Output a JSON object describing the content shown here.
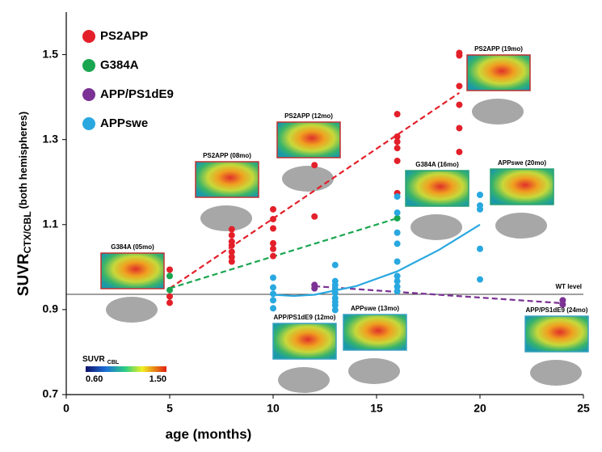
{
  "chart_data": {
    "type": "scatter",
    "x_label": "age (months)",
    "y_label": {
      "main": "SUVR",
      "subscript": "CTX/CBL",
      "suffix": "(both hemispheres)"
    },
    "xlim": [
      0,
      25
    ],
    "xticks": [
      0,
      5,
      10,
      15,
      20,
      25
    ],
    "ylim": [
      0.7,
      1.6
    ],
    "yticks": [
      0.7,
      0.9,
      1.1,
      1.3,
      1.5
    ],
    "series": [
      {
        "name": "PS2APP",
        "color": "#e3202a",
        "x": [
          5,
          5,
          5,
          8,
          8,
          8,
          8,
          8,
          8,
          8,
          10,
          10,
          10,
          10,
          10,
          10,
          12,
          12,
          16,
          16,
          16,
          16,
          16,
          16,
          19,
          19,
          19,
          19,
          19,
          19
        ],
        "values": [
          0.994,
          0.931,
          0.916,
          1.089,
          1.075,
          1.06,
          1.051,
          1.036,
          1.024,
          1.013,
          1.136,
          1.113,
          1.091,
          1.056,
          1.043,
          1.026,
          1.24,
          1.119,
          1.36,
          1.307,
          1.295,
          1.28,
          1.25,
          1.174,
          1.504,
          1.498,
          1.426,
          1.382,
          1.327,
          1.271
        ]
      },
      {
        "name": "G384A",
        "color": "#1aa650",
        "x": [
          5,
          5,
          16
        ],
        "values": [
          0.979,
          0.946,
          1.115
        ]
      },
      {
        "name": "APP/PS1dE9",
        "color": "#7b3294",
        "x": [
          12,
          12,
          24,
          24
        ],
        "values": [
          0.958,
          0.95,
          0.922,
          0.912
        ]
      },
      {
        "name": "APPswe",
        "color": "#29a8e0",
        "x": [
          10,
          10,
          10,
          10,
          10,
          13,
          13,
          13,
          13,
          13,
          13,
          13,
          13,
          13,
          16,
          16,
          16,
          16,
          16,
          16,
          16,
          16,
          16,
          20,
          20,
          20,
          20,
          20
        ],
        "values": [
          0.975,
          0.952,
          0.937,
          0.922,
          0.903,
          1.005,
          0.967,
          0.958,
          0.948,
          0.939,
          0.927,
          0.918,
          0.91,
          0.899,
          1.166,
          1.128,
          1.081,
          1.055,
          1.013,
          0.979,
          0.967,
          0.954,
          0.943,
          1.17,
          1.145,
          1.136,
          1.043,
          0.971
        ]
      }
    ],
    "trendlines": [
      {
        "color": "#e3202a",
        "dashed": true,
        "x": [
          5,
          19
        ],
        "values": [
          0.95,
          1.41
        ]
      },
      {
        "color": "#1aa650",
        "dashed": true,
        "x": [
          5,
          16
        ],
        "values": [
          0.95,
          1.115
        ]
      },
      {
        "color": "#7b3294",
        "dashed": true,
        "x": [
          12,
          24
        ],
        "values": [
          0.955,
          0.915
        ]
      },
      {
        "color": "#29a8e0",
        "dashed": false,
        "x": [
          10,
          11,
          12,
          14,
          16,
          18,
          20
        ],
        "values": [
          0.935,
          0.932,
          0.935,
          0.955,
          0.99,
          1.04,
          1.1
        ]
      }
    ],
    "reference_line": {
      "value": 0.936,
      "label": "WT level"
    },
    "annotations": [
      "G384A (05mo)",
      "PS2APP (08mo)",
      "PS2APP (12mo)",
      "PS2APP (19mo)",
      "G384A (16mo)",
      "APPswe (20mo)",
      "APP/PS1dE9 (12mo)",
      "APPswe (13mo)",
      "APP/PS1dE9 (24mo)"
    ],
    "colorbar": {
      "label": "SUVR",
      "subscript": "CBL",
      "min_label": "0.60",
      "max_label": "1.50"
    }
  }
}
